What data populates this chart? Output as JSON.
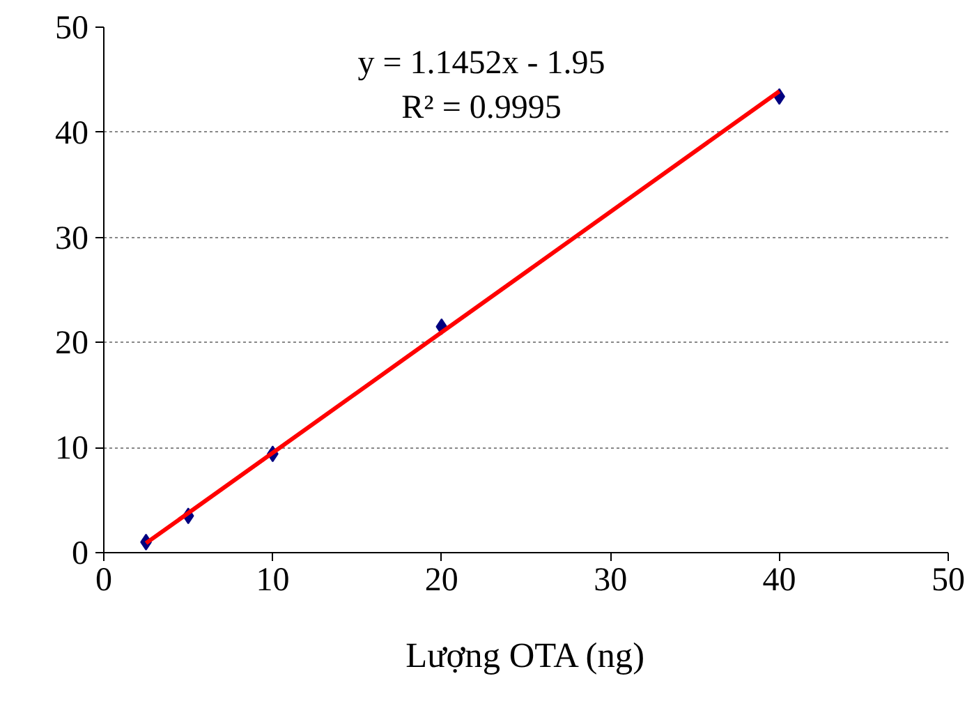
{
  "chart_data": {
    "type": "scatter",
    "xlabel": "Lượng OTA (ng)",
    "xlim": [
      0,
      50
    ],
    "xticks": [
      0,
      10,
      20,
      30,
      40,
      50
    ],
    "ylim": [
      0,
      50
    ],
    "yticks": [
      0,
      10,
      20,
      30,
      40,
      50
    ],
    "grid": "y",
    "series": [
      {
        "marker": "diamond",
        "color": "#000080",
        "x": [
          2.5,
          5,
          10,
          20,
          40
        ],
        "values": [
          1.0,
          3.5,
          9.4,
          21.5,
          43.4
        ]
      },
      {
        "type": "line",
        "line_style": "solid",
        "color": "#ff0000",
        "x": [
          2.5,
          40
        ],
        "values": [
          0.9,
          43.9
        ]
      }
    ],
    "annotations": [
      "y = 1.1452x - 1.95",
      "R² = 0.9995"
    ]
  }
}
